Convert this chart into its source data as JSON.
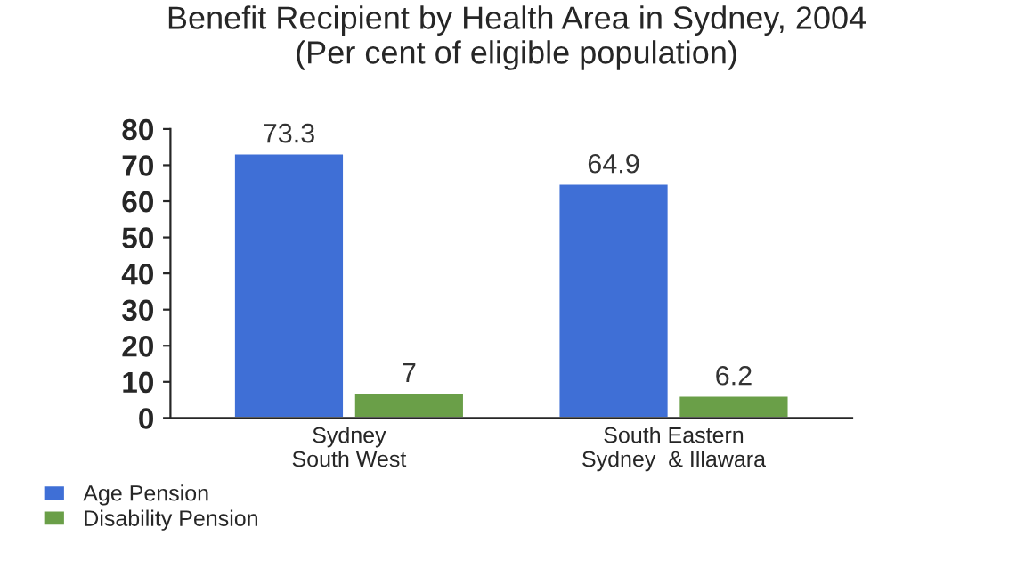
{
  "chart_data": {
    "type": "bar",
    "title": "Benefit Recipient by Health Area in Sydney, 2004\n(Per cent of eligible population)",
    "categories": [
      "Sydney\nSouth West",
      "South Eastern\nSydney  & Illawara"
    ],
    "series": [
      {
        "name": "Age Pension",
        "color": "#3f6fd6",
        "values": [
          73.3,
          64.9
        ]
      },
      {
        "name": "Disability Pension",
        "color": "#6a9f48",
        "values": [
          7,
          6.2
        ]
      }
    ],
    "ylim": [
      0,
      80
    ],
    "yticks": [
      0,
      10,
      20,
      30,
      40,
      50,
      60,
      70,
      80
    ],
    "data_labels": true,
    "grid": false,
    "legend": "bottom left"
  }
}
